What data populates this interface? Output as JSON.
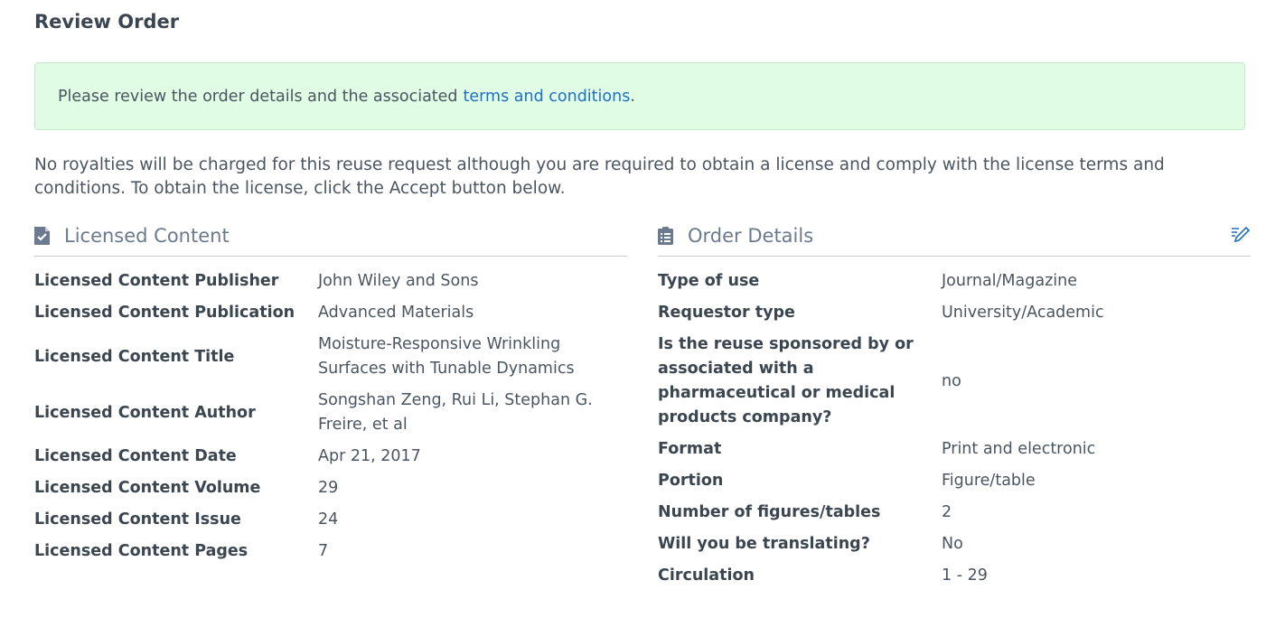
{
  "title": "Review Order",
  "alert": {
    "text": "Please review the order details and the associated",
    "link": "terms and conditions",
    "suffix": "."
  },
  "note": "No royalties will be charged for this reuse request although you are required to obtain a license and comply with the license terms and conditions. To obtain the license, click the Accept button below.",
  "licensed": {
    "heading": "Licensed Content",
    "icon": "document-check-icon",
    "rows": [
      {
        "k": "Licensed Content Publisher",
        "v": "John Wiley and Sons"
      },
      {
        "k": "Licensed Content Publication",
        "v": "Advanced Materials"
      },
      {
        "k": "Licensed Content Title",
        "v": "Moisture-Responsive Wrinkling Surfaces with Tunable Dynamics"
      },
      {
        "k": "Licensed Content Author",
        "v": "Songshan Zeng, Rui Li, Stephan G. Freire, et al"
      },
      {
        "k": "Licensed Content Date",
        "v": "Apr 21, 2017"
      },
      {
        "k": "Licensed Content Volume",
        "v": "29"
      },
      {
        "k": "Licensed Content Issue",
        "v": "24"
      },
      {
        "k": "Licensed Content Pages",
        "v": "7"
      }
    ]
  },
  "order": {
    "heading": "Order Details",
    "icon": "clipboard-list-icon",
    "edit_icon": "edit-icon",
    "rows": [
      {
        "k": "Type of use",
        "v": "Journal/Magazine"
      },
      {
        "k": "Requestor type",
        "v": "University/Academic"
      },
      {
        "k": "Is the reuse sponsored by or associated with a pharmaceutical or medical products company?",
        "v": "no"
      },
      {
        "k": "Format",
        "v": "Print and electronic"
      },
      {
        "k": "Portion",
        "v": "Figure/table"
      },
      {
        "k": "Number of figures/tables",
        "v": "2"
      },
      {
        "k": "Will you be translating?",
        "v": "No"
      },
      {
        "k": "Circulation",
        "v": "1 - 29"
      }
    ]
  },
  "colors": {
    "link": "#1f6fc5",
    "alert_bg": "#e0fce4",
    "heading": "#6b7a8f"
  }
}
